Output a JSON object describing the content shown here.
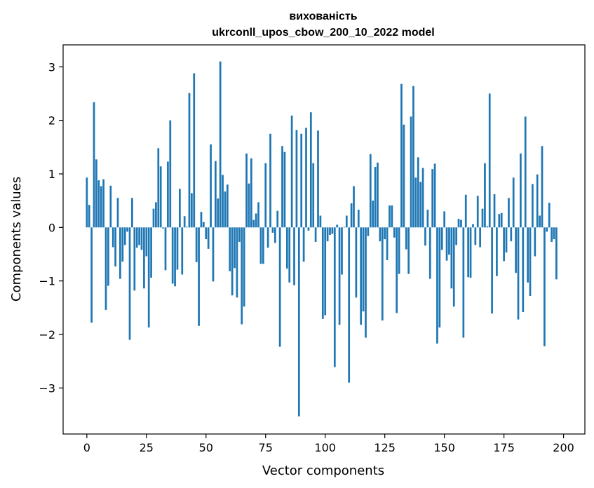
{
  "chart_data": {
    "type": "bar",
    "title": "вихованість",
    "subtitle": "ukrconll_upos_cbow_200_10_2022 model",
    "xlabel": "Vector components",
    "ylabel": "Components values",
    "xlim": [
      -9.95,
      208.95
    ],
    "ylim": [
      -3.86,
      3.41
    ],
    "xticks": [
      0,
      25,
      50,
      75,
      100,
      125,
      150,
      175,
      200
    ],
    "yticks": [
      -3,
      -2,
      -1,
      0,
      1,
      2,
      3
    ],
    "ytick_labels": [
      "−3",
      "−2",
      "−1",
      "0",
      "1",
      "2",
      "3"
    ],
    "grid": false,
    "color": "#1f77b4",
    "values": [
      0.93,
      0.42,
      -1.78,
      2.34,
      1.27,
      0.88,
      0.77,
      0.9,
      -1.54,
      -1.09,
      0.78,
      -0.37,
      -0.73,
      0.55,
      -0.96,
      -0.64,
      -0.33,
      -0.08,
      -2.1,
      0.55,
      -1.18,
      -0.38,
      -0.33,
      -0.42,
      -1.14,
      -0.54,
      -1.87,
      -0.94,
      0.35,
      0.47,
      1.48,
      1.14,
      -0.02,
      -0.8,
      1.23,
      2.0,
      -1.05,
      -1.1,
      -0.79,
      0.72,
      -0.88,
      0.21,
      0.01,
      2.51,
      0.64,
      2.88,
      -0.65,
      -1.84,
      0.29,
      0.1,
      -0.22,
      -0.4,
      1.55,
      -1.01,
      1.24,
      0.54,
      3.1,
      0.98,
      0.67,
      0.8,
      -0.82,
      -1.27,
      -0.76,
      -1.31,
      -0.27,
      -1.81,
      -1.48,
      1.38,
      0.82,
      1.29,
      0.14,
      0.26,
      0.47,
      -0.68,
      -0.68,
      1.2,
      -0.38,
      1.75,
      -0.1,
      -0.29,
      0.31,
      -2.23,
      1.52,
      1.41,
      -0.77,
      -1.03,
      2.09,
      -1.08,
      1.82,
      -3.53,
      1.75,
      -0.64,
      1.86,
      -0.06,
      2.15,
      1.2,
      -0.27,
      1.81,
      0.22,
      -1.71,
      -1.64,
      -0.26,
      -0.14,
      -0.12,
      -2.61,
      0.05,
      -1.82,
      -0.88,
      0.01,
      0.22,
      -2.9,
      0.45,
      0.77,
      -1.31,
      0.33,
      -1.82,
      -1.57,
      -2.06,
      -0.16,
      1.37,
      0.5,
      1.13,
      1.21,
      -0.26,
      -1.74,
      -0.22,
      -0.61,
      0.41,
      0.41,
      -0.19,
      -1.6,
      -0.87,
      2.68,
      1.92,
      -0.41,
      -0.87,
      2.07,
      2.64,
      0.93,
      1.31,
      0.85,
      1.11,
      -0.34,
      0.33,
      -0.96,
      1.09,
      1.19,
      -2.17,
      -1.87,
      -0.42,
      0.3,
      -0.62,
      -0.51,
      -1.14,
      -1.48,
      -0.33,
      0.16,
      0.14,
      -2.06,
      0.61,
      -0.93,
      -0.94,
      0.06,
      -0.33,
      0.59,
      -0.37,
      0.35,
      1.2,
      0.02,
      2.5,
      -1.61,
      0.62,
      -0.91,
      0.25,
      0.27,
      -0.63,
      -0.47,
      0.55,
      -0.26,
      0.93,
      -0.85,
      -1.72,
      1.38,
      -1.58,
      2.07,
      -1.03,
      -1.28,
      0.81,
      -0.54,
      0.99,
      0.22,
      1.52,
      -2.22,
      -0.08,
      0.46,
      -0.27,
      -0.22,
      -0.97
    ]
  }
}
